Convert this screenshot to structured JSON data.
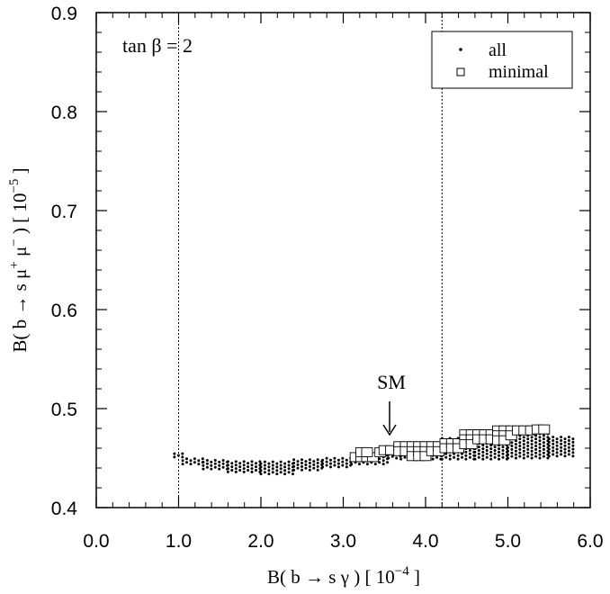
{
  "chart_data": {
    "type": "scatter",
    "title": "",
    "xlabel_prefix": "B( b → s γ )  [ 10",
    "xlabel_exp": "−4",
    "xlabel_suffix": " ]",
    "ylabel_prefix": "B( b → s μ",
    "ylabel_sup1": "+",
    "ylabel_mid": " μ",
    "ylabel_sup2": "−",
    "ylabel_unit": " )  [ 10",
    "ylabel_exp": "−5",
    "ylabel_suffix": " ]",
    "xlim": [
      0.0,
      6.0
    ],
    "ylim": [
      0.4,
      0.9
    ],
    "xticks": [
      "0.0",
      "1.0",
      "2.0",
      "3.0",
      "4.0",
      "5.0",
      "6.0"
    ],
    "yticks": [
      "0.4",
      "0.5",
      "0.6",
      "0.7",
      "0.8",
      "0.9"
    ],
    "vlines": [
      1.0,
      4.2
    ],
    "annotation": "tan β =  2",
    "sm_label": "SM",
    "sm_x": 3.57,
    "sm_y": 0.46,
    "legend": {
      "position": "top-right",
      "entries": [
        "all",
        "minimal"
      ]
    },
    "series": [
      {
        "name": "all",
        "marker": "dot",
        "bands": [
          {
            "x0": 0.95,
            "x1": 1.05,
            "ylo": 0.451,
            "yhi": 0.456
          },
          {
            "x0": 1.05,
            "x1": 1.3,
            "ylo": 0.444,
            "yhi": 0.45
          },
          {
            "x0": 1.3,
            "x1": 1.6,
            "ylo": 0.439,
            "yhi": 0.449
          },
          {
            "x0": 1.6,
            "x1": 2.0,
            "ylo": 0.436,
            "yhi": 0.447
          },
          {
            "x0": 2.0,
            "x1": 2.4,
            "ylo": 0.434,
            "yhi": 0.447
          },
          {
            "x0": 2.4,
            "x1": 2.75,
            "ylo": 0.438,
            "yhi": 0.449
          },
          {
            "x0": 2.75,
            "x1": 3.1,
            "ylo": 0.441,
            "yhi": 0.45
          },
          {
            "x0": 3.1,
            "x1": 3.55,
            "ylo": 0.444,
            "yhi": 0.456
          },
          {
            "x0": 3.55,
            "x1": 3.7,
            "ylo": 0.45,
            "yhi": 0.461
          },
          {
            "x0": 3.7,
            "x1": 4.2,
            "ylo": 0.449,
            "yhi": 0.466
          },
          {
            "x0": 4.2,
            "x1": 4.6,
            "ylo": 0.449,
            "yhi": 0.47
          },
          {
            "x0": 4.6,
            "x1": 5.0,
            "ylo": 0.449,
            "yhi": 0.474
          },
          {
            "x0": 5.0,
            "x1": 5.5,
            "ylo": 0.45,
            "yhi": 0.478
          },
          {
            "x0": 5.5,
            "x1": 5.82,
            "ylo": 0.452,
            "yhi": 0.472
          }
        ]
      },
      {
        "name": "minimal",
        "marker": "open-square",
        "points": [
          [
            3.15,
            0.451
          ],
          [
            3.22,
            0.451
          ],
          [
            3.29,
            0.451
          ],
          [
            3.36,
            0.451
          ],
          [
            3.22,
            0.456
          ],
          [
            3.29,
            0.456
          ],
          [
            3.45,
            0.456
          ],
          [
            3.5,
            0.458
          ],
          [
            3.58,
            0.458
          ],
          [
            3.68,
            0.462
          ],
          [
            3.68,
            0.457
          ],
          [
            3.76,
            0.462
          ],
          [
            3.76,
            0.457
          ],
          [
            3.84,
            0.462
          ],
          [
            3.84,
            0.457
          ],
          [
            3.84,
            0.452
          ],
          [
            3.92,
            0.462
          ],
          [
            3.92,
            0.457
          ],
          [
            3.92,
            0.452
          ],
          [
            4.0,
            0.462
          ],
          [
            4.0,
            0.457
          ],
          [
            4.0,
            0.452
          ],
          [
            4.08,
            0.462
          ],
          [
            4.08,
            0.457
          ],
          [
            4.16,
            0.462
          ],
          [
            4.16,
            0.457
          ],
          [
            4.24,
            0.465
          ],
          [
            4.24,
            0.46
          ],
          [
            4.32,
            0.465
          ],
          [
            4.32,
            0.46
          ],
          [
            4.4,
            0.465
          ],
          [
            4.4,
            0.46
          ],
          [
            4.48,
            0.474
          ],
          [
            4.48,
            0.469
          ],
          [
            4.48,
            0.464
          ],
          [
            4.56,
            0.474
          ],
          [
            4.56,
            0.469
          ],
          [
            4.56,
            0.464
          ],
          [
            4.64,
            0.474
          ],
          [
            4.64,
            0.469
          ],
          [
            4.72,
            0.474
          ],
          [
            4.72,
            0.469
          ],
          [
            4.8,
            0.474
          ],
          [
            4.8,
            0.469
          ],
          [
            4.88,
            0.478
          ],
          [
            4.88,
            0.473
          ],
          [
            4.88,
            0.468
          ],
          [
            4.96,
            0.478
          ],
          [
            4.96,
            0.473
          ],
          [
            4.96,
            0.468
          ],
          [
            5.04,
            0.478
          ],
          [
            5.04,
            0.473
          ],
          [
            5.12,
            0.478
          ],
          [
            5.2,
            0.478
          ],
          [
            5.28,
            0.478
          ],
          [
            5.36,
            0.479
          ],
          [
            5.44,
            0.479
          ]
        ]
      }
    ]
  }
}
